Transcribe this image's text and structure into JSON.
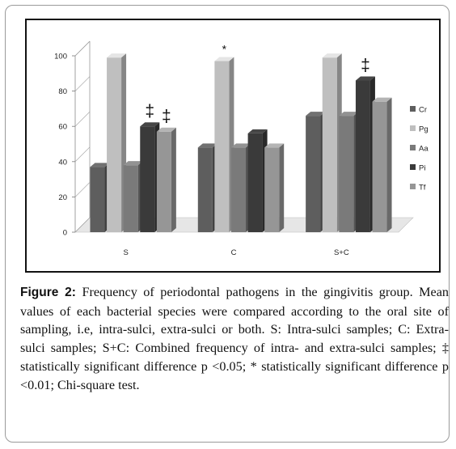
{
  "chart_data": {
    "type": "bar",
    "style": "3d-clustered-column",
    "categories": [
      "S",
      "C",
      "S+C"
    ],
    "series": [
      {
        "name": "Cr",
        "color": "#5e5e5e",
        "values": [
          37,
          48,
          66
        ]
      },
      {
        "name": "Pg",
        "color": "#bfbfbf",
        "values": [
          99,
          97,
          99
        ]
      },
      {
        "name": "Aa",
        "color": "#7a7a7a",
        "values": [
          38,
          48,
          66
        ]
      },
      {
        "name": "Pi",
        "color": "#3a3a3a",
        "values": [
          60,
          56,
          86
        ]
      },
      {
        "name": "Tf",
        "color": "#969696",
        "values": [
          57,
          48,
          74
        ]
      }
    ],
    "ylim": [
      0,
      100
    ],
    "yticks": [
      "0",
      "20",
      "40",
      "60",
      "80",
      "100"
    ],
    "grid": false,
    "legend_position": "right",
    "annotations": [
      {
        "text": "‡",
        "category": "S",
        "series": "Pi"
      },
      {
        "text": "‡",
        "category": "S",
        "series": "Tf"
      },
      {
        "text": "*",
        "category": "C",
        "series": "Pg"
      },
      {
        "text": "‡",
        "category": "S+C",
        "series": "Pi"
      }
    ]
  },
  "caption": {
    "label": "Figure 2:",
    "text": " Frequency of periodontal pathogens in the gingivitis group. Mean values of each bacterial species were compared according to the oral site of sampling, i.e, intra-sulci, extra-sulci or both. S: Intra-sulci samples; C: Extra-sulci samples; S+C: Combined frequency of intra- and extra-sulci samples; ‡ statistically significant difference p <0.05; * statistically significant difference p <0.01; Chi-square test."
  }
}
